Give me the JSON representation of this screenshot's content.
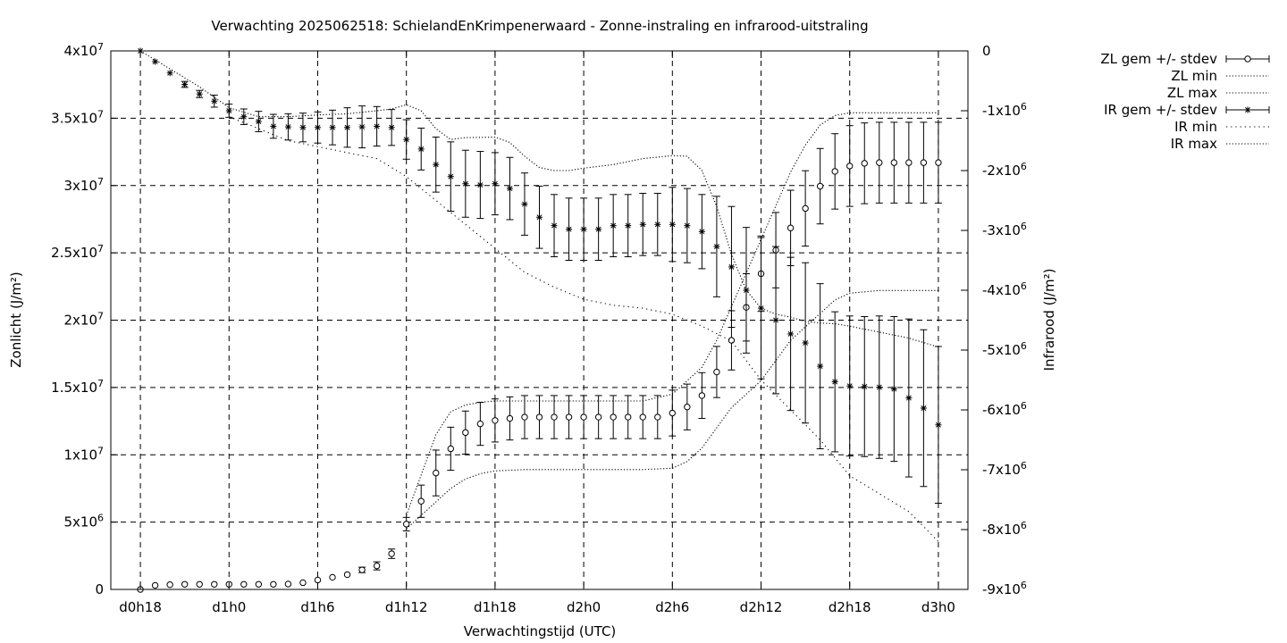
{
  "chart_data": {
    "type": "scatter",
    "title": "Verwachting 2025062518: SchielandEnKrimpenerwaard - Zonne-instraling en infrarood-uitstraling",
    "xlabel": "Verwachtingstijd (UTC)",
    "ylabel_left": "Zonlicht (J/m²)",
    "ylabel_right": "Infrarood (J/m²)",
    "x_unit": "hours since d0h18",
    "x_ticks": [
      {
        "x": 0,
        "label": "d0h18"
      },
      {
        "x": 6,
        "label": "d1h0"
      },
      {
        "x": 12,
        "label": "d1h6"
      },
      {
        "x": 18,
        "label": "d1h12"
      },
      {
        "x": 24,
        "label": "d1h18"
      },
      {
        "x": 30,
        "label": "d2h0"
      },
      {
        "x": 36,
        "label": "d2h6"
      },
      {
        "x": 42,
        "label": "d2h12"
      },
      {
        "x": 48,
        "label": "d2h18"
      },
      {
        "x": 54,
        "label": "d3h0"
      }
    ],
    "xlim": [
      -2,
      56
    ],
    "ylim_left": [
      0,
      40000000
    ],
    "ylim_right": [
      -9000000,
      0
    ],
    "y_ticks_left": [
      {
        "v": 0,
        "m": "0",
        "e": ""
      },
      {
        "v": 5000000,
        "m": "5x10",
        "e": "6"
      },
      {
        "v": 10000000,
        "m": "1x10",
        "e": "7"
      },
      {
        "v": 15000000,
        "m": "1.5x10",
        "e": "7"
      },
      {
        "v": 20000000,
        "m": "2x10",
        "e": "7"
      },
      {
        "v": 25000000,
        "m": "2.5x10",
        "e": "7"
      },
      {
        "v": 30000000,
        "m": "3x10",
        "e": "7"
      },
      {
        "v": 35000000,
        "m": "3.5x10",
        "e": "7"
      },
      {
        "v": 40000000,
        "m": "4x10",
        "e": "7"
      }
    ],
    "y_ticks_right": [
      {
        "v": 0,
        "m": "0",
        "e": ""
      },
      {
        "v": -1000000,
        "m": "-1x10",
        "e": "6"
      },
      {
        "v": -2000000,
        "m": "-2x10",
        "e": "6"
      },
      {
        "v": -3000000,
        "m": "-3x10",
        "e": "6"
      },
      {
        "v": -4000000,
        "m": "-4x10",
        "e": "6"
      },
      {
        "v": -5000000,
        "m": "-5x10",
        "e": "6"
      },
      {
        "v": -6000000,
        "m": "-6x10",
        "e": "6"
      },
      {
        "v": -7000000,
        "m": "-7x10",
        "e": "6"
      },
      {
        "v": -8000000,
        "m": "-8x10",
        "e": "6"
      },
      {
        "v": -9000000,
        "m": "-9x10",
        "e": "6"
      }
    ],
    "grid": true,
    "legend_position": "outside top-right",
    "series": [
      {
        "name": "ZL gem +/- stdev",
        "axis": "left",
        "marker": "circle",
        "x": [
          0,
          1,
          2,
          3,
          4,
          5,
          6,
          7,
          8,
          9,
          10,
          11,
          12,
          13,
          14,
          15,
          16,
          17,
          18,
          19,
          20,
          21,
          22,
          23,
          24,
          25,
          26,
          27,
          28,
          29,
          30,
          31,
          32,
          33,
          34,
          35,
          36,
          37,
          38,
          39,
          40,
          41,
          42,
          43,
          44,
          45,
          46,
          47,
          48,
          49,
          50,
          51,
          52,
          53,
          54
        ],
        "y": [
          0,
          300000,
          350000,
          380000,
          380000,
          380000,
          380000,
          380000,
          380000,
          380000,
          400000,
          500000,
          700000,
          900000,
          1100000,
          1450000,
          1750000,
          2650000,
          4850000,
          6550000,
          8650000,
          10450000,
          11650000,
          12300000,
          12550000,
          12700000,
          12800000,
          12800000,
          12800000,
          12800000,
          12800000,
          12800000,
          12800000,
          12800000,
          12800000,
          12800000,
          13100000,
          13550000,
          14400000,
          16150000,
          18500000,
          20950000,
          23450000,
          25200000,
          26850000,
          28300000,
          29950000,
          31050000,
          31450000,
          31650000,
          31700000,
          31700000,
          31700000,
          31700000,
          31700000
        ],
        "err": [
          0,
          0,
          0,
          0,
          0,
          0,
          0,
          0,
          0,
          0,
          0,
          0,
          0,
          0,
          0,
          200000,
          300000,
          350000,
          500000,
          1200000,
          1700000,
          1600000,
          1600000,
          1600000,
          1600000,
          1600000,
          1600000,
          1600000,
          1600000,
          1600000,
          1600000,
          1600000,
          1600000,
          1600000,
          1600000,
          1600000,
          1700000,
          1700000,
          1700000,
          1900000,
          2200000,
          2500000,
          2800000,
          2800000,
          2800000,
          2800000,
          2800000,
          2800000,
          3000000,
          3000000,
          3000000,
          3000000,
          3000000,
          3000000,
          3000000
        ]
      },
      {
        "name": "ZL min",
        "axis": "left",
        "style": "dotted",
        "x": [
          18,
          19,
          20,
          21,
          22,
          23,
          24,
          26,
          28,
          30,
          32,
          34,
          36,
          37,
          38,
          39,
          40,
          41,
          42,
          43,
          44,
          45,
          46,
          47,
          48,
          50,
          52,
          54
        ],
        "y": [
          4500000,
          5500000,
          6500000,
          7500000,
          8200000,
          8600000,
          8800000,
          8900000,
          8900000,
          8900000,
          8900000,
          8900000,
          9000000,
          9500000,
          10500000,
          12000000,
          13500000,
          14500000,
          15500000,
          17000000,
          18500000,
          19500000,
          20500000,
          21500000,
          22000000,
          22200000,
          22200000,
          22200000
        ]
      },
      {
        "name": "ZL max",
        "axis": "left",
        "style": "dotted",
        "x": [
          18,
          19,
          20,
          21,
          22,
          23,
          24,
          26,
          28,
          30,
          32,
          34,
          36,
          37,
          38,
          39,
          40,
          41,
          42,
          43,
          44,
          45,
          46,
          47,
          48,
          50,
          52,
          54
        ],
        "y": [
          5500000,
          8500000,
          11500000,
          13200000,
          13700000,
          13900000,
          14000000,
          14000000,
          14000000,
          14000000,
          14000000,
          14000000,
          14500000,
          15500000,
          16500000,
          18500000,
          21000000,
          23500000,
          26000000,
          28500000,
          31000000,
          33000000,
          34500000,
          35200000,
          35400000,
          35400000,
          35400000,
          35400000
        ]
      },
      {
        "name": "IR gem +/- stdev",
        "axis": "right",
        "marker": "star",
        "x": [
          0,
          1,
          2,
          3,
          4,
          5,
          6,
          7,
          8,
          9,
          10,
          11,
          12,
          13,
          14,
          15,
          16,
          17,
          18,
          19,
          20,
          21,
          22,
          23,
          24,
          25,
          26,
          27,
          28,
          29,
          30,
          31,
          32,
          33,
          34,
          35,
          36,
          37,
          38,
          39,
          40,
          41,
          42,
          43,
          44,
          45,
          46,
          47,
          48,
          49,
          50,
          51,
          52,
          53,
          54
        ],
        "y": [
          0,
          -180000,
          -370000,
          -560000,
          -720000,
          -840000,
          -1000000,
          -1100000,
          -1180000,
          -1260000,
          -1270000,
          -1280000,
          -1280000,
          -1280000,
          -1280000,
          -1270000,
          -1260000,
          -1280000,
          -1480000,
          -1640000,
          -1900000,
          -2100000,
          -2220000,
          -2240000,
          -2220000,
          -2300000,
          -2560000,
          -2780000,
          -2920000,
          -2980000,
          -2980000,
          -2980000,
          -2920000,
          -2920000,
          -2900000,
          -2900000,
          -2900000,
          -2920000,
          -3020000,
          -3270000,
          -3610000,
          -4000000,
          -4300000,
          -4500000,
          -4730000,
          -4880000,
          -5270000,
          -5530000,
          -5600000,
          -5610000,
          -5620000,
          -5650000,
          -5800000,
          -5970000,
          -6250000
        ],
        "err": [
          0,
          0,
          0,
          50000,
          60000,
          100000,
          110000,
          130000,
          170000,
          200000,
          220000,
          240000,
          260000,
          290000,
          330000,
          350000,
          330000,
          300000,
          330000,
          350000,
          460000,
          580000,
          560000,
          560000,
          520000,
          520000,
          520000,
          520000,
          520000,
          520000,
          520000,
          520000,
          520000,
          520000,
          520000,
          520000,
          620000,
          620000,
          620000,
          840000,
          1010000,
          1050000,
          1180000,
          1230000,
          1280000,
          1340000,
          1380000,
          1170000,
          1170000,
          1170000,
          1190000,
          1210000,
          1320000,
          1310000,
          1310000
        ]
      },
      {
        "name": "IR min",
        "axis": "right",
        "style": "dotted",
        "x": [
          6,
          10,
          14,
          16,
          18,
          20,
          22,
          24,
          26,
          28,
          30,
          32,
          34,
          36,
          38,
          40,
          42,
          44,
          46,
          48,
          50,
          52,
          54
        ],
        "y": [
          -1100000,
          -1500000,
          -1700000,
          -1800000,
          -2100000,
          -2500000,
          -2900000,
          -3300000,
          -3700000,
          -3950000,
          -4150000,
          -4250000,
          -4300000,
          -4400000,
          -4600000,
          -4850000,
          -5500000,
          -6000000,
          -6500000,
          -7100000,
          -7400000,
          -7700000,
          -8200000
        ]
      },
      {
        "name": "IR max",
        "axis": "right",
        "style": "dotted",
        "x": [
          0,
          2,
          4,
          6,
          8,
          10,
          12,
          14,
          16,
          17,
          18,
          19,
          20,
          21,
          22,
          24,
          25,
          26,
          27,
          28,
          29,
          30,
          32,
          34,
          36,
          37,
          38,
          39,
          40,
          41,
          42,
          43,
          44,
          45,
          46,
          47,
          48,
          50,
          52,
          54
        ],
        "y": [
          0,
          -300000,
          -600000,
          -950000,
          -1100000,
          -1100000,
          -1070000,
          -1050000,
          -1000000,
          -970000,
          -900000,
          -1000000,
          -1300000,
          -1480000,
          -1450000,
          -1440000,
          -1530000,
          -1760000,
          -1950000,
          -2000000,
          -2000000,
          -1960000,
          -1900000,
          -1800000,
          -1750000,
          -1760000,
          -2000000,
          -2600000,
          -3400000,
          -4000000,
          -4300000,
          -4400000,
          -4450000,
          -4520000,
          -4550000,
          -4560000,
          -4600000,
          -4700000,
          -4800000,
          -4950000
        ]
      }
    ]
  }
}
